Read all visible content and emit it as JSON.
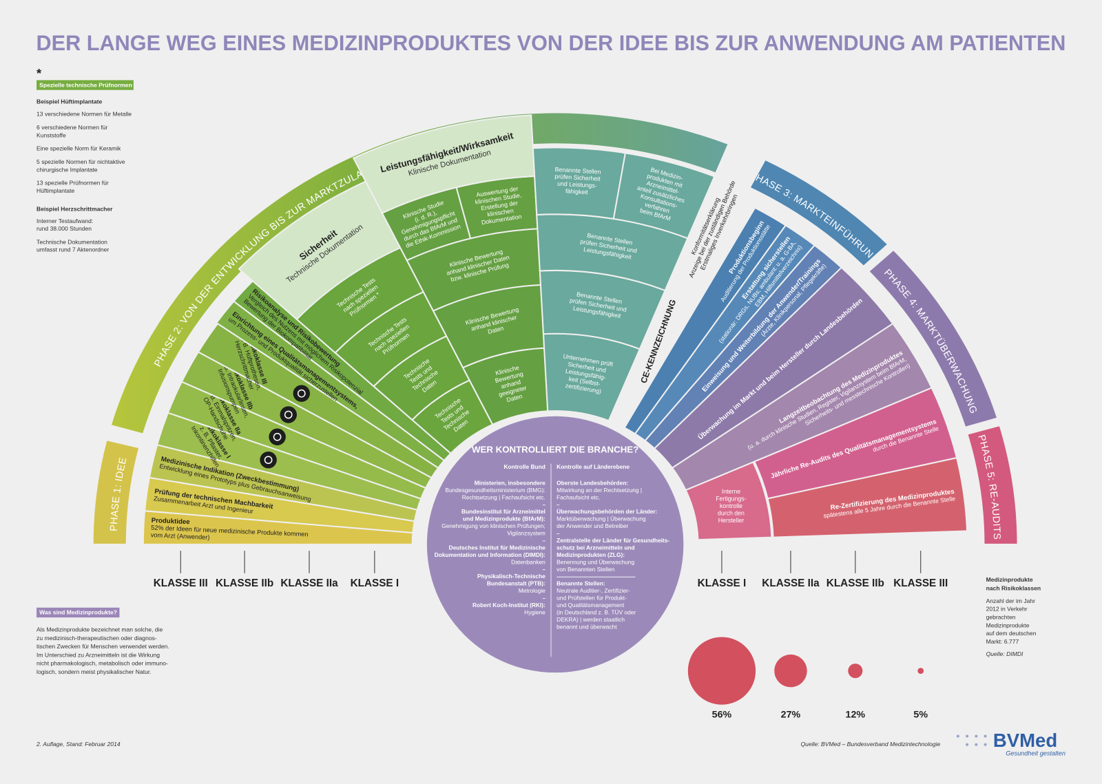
{
  "title": "DER LANGE WEG EINES MEDIZINPRODUKTES VON DER IDEE BIS ZUR ANWENDUNG AM PATIENTEN",
  "norms": {
    "marker": "*",
    "label": "Spezielle technische Prüfnormen",
    "hip_heading": "Beispiel Hüftimplantate",
    "hip_items": [
      [
        "13 verschiedene Normen für Metalle"
      ],
      [
        "6 verschiedene Normen für",
        "Kunststoffe"
      ],
      [
        "Eine spezielle Norm für Keramik"
      ],
      [
        "5 spezielle Normen für nichtaktive",
        "chirurgische Implantate"
      ],
      [
        "13 spezielle Prüfnormen für",
        "Hüftimplantate"
      ]
    ],
    "pacemaker_heading": "Beispiel Herzschrittmacher",
    "pacemaker_items": [
      [
        "Interner Testaufwand:",
        "rund 38.000 Stunden"
      ],
      [
        "Technische Dokumentation",
        "umfasst rund 7 Aktenordner"
      ]
    ]
  },
  "what_are": {
    "label": "Was sind Medizinprodukte?",
    "text": [
      "Als Medizinprodukte bezeichnet man solche, die",
      "zu medizinisch-therapeutischen oder diagnos-",
      "tischen Zwecken für Menschen verwendet werden.",
      "Im Unterschied zu Arzneimitteln ist die Wirkung",
      "nicht pharmakologisch, metabolisch oder immuno-",
      "logisch, sondern meist physikalischer Natur."
    ]
  },
  "phases": [
    "PHASE 1: IDEE",
    "PHASE 2: VON DER ENTWICKLUNG BIS ZUR MARKTZULASSUNG",
    "PHASE 3: MARKTEINFÜHRUNG",
    "PHASE 4: MARKTÜBERWACHUNG",
    "PHASE 5: RE-AUDITS"
  ],
  "idea_bands": [
    {
      "title": "Produktidee",
      "text": [
        "52% der Ideen für neue medizinische Produkte kommen",
        "vom Arzt (Anwender)"
      ]
    },
    {
      "title": "Prüfung der technischen Machbarkeit",
      "text": [
        "Zusammenarbeit Arzt und Ingenieur"
      ]
    },
    {
      "title": "Medizinische Indikation (Zweckbestimmung)",
      "text": [
        "Entwicklung eines Prototyps plus Gebrauchsanweisung"
      ]
    }
  ],
  "risk_classes": [
    {
      "title": "Risikoklasse I",
      "text": [
        "z. B. Pflaster,",
        "Inkontinenzhilfen"
      ]
    },
    {
      "title": "Risikoklasse IIa",
      "text": [
        "z. B. Einmalspritzen,",
        "OP-Handschuhe"
      ]
    },
    {
      "title": "Risikoklasse IIb",
      "text": [
        "z. B. Intraokularlinsen,",
        "Infusionspumpen"
      ]
    },
    {
      "title": "Risikoklasse III",
      "text": [
        "z. B. Hüftprothesen,",
        "Herzschrittmacher"
      ]
    }
  ],
  "dev_bands": [
    {
      "title": "Einrichtung eines Qualitätsmanagementsystems,",
      "text": [
        "um Prozess- und Produktqualität sicherzustellen"
      ]
    },
    {
      "title": "Risikoanalyse und Risikobewertung",
      "text": [
        "Vergleich des Nutzens mit möglichem Risikopotenzial",
        "Bewertung der Biokompatibilität"
      ]
    }
  ],
  "safety": {
    "header": [
      "Sicherheit",
      "Technische Dokumentation"
    ],
    "cells": [
      [
        "Technische",
        "Tests und",
        "Technische",
        "Daten"
      ],
      [
        "Technische",
        "Tests und",
        "Technische",
        "Daten"
      ],
      [
        "Technische Tests",
        "nach speziellen",
        "Prüfnormen"
      ],
      [
        "Technische Tests",
        "nach speziellen",
        "Prüfnormen *"
      ]
    ]
  },
  "performance": {
    "header": [
      "Leistungsfähigkeit/Wirksamkeit",
      "Klinische Dokumentation"
    ],
    "cells": [
      [
        "Klinische",
        "Bewertung",
        "anhand",
        "geeigneter",
        "Daten"
      ],
      [
        "Klinische Bewertung",
        "anhand klinischer",
        "Daten"
      ],
      [
        "Klinische Bewertung",
        "anhand klinischer Daten",
        "bzw. klinische Prüfung"
      ]
    ],
    "top_cells": [
      [
        "Klinische Studie",
        "(i. d. R.),",
        "Genehmigungspflicht",
        "durch das BfArM und",
        "die Ethik-Kommission"
      ],
      [
        "Auswertung der",
        "klinischen Studie,",
        "Erstellung der",
        "klinischen",
        "Dokumentation"
      ]
    ]
  },
  "certification": {
    "cells": [
      [
        "Unternehmen prüft",
        "Sicherheit und",
        "Leistungsfähig-",
        "keit (Selbst-",
        "zertifizierung)"
      ],
      [
        "Benannte Stellen",
        "prüfen Sicherheit und",
        "Leistungsfähigkeit"
      ],
      [
        "Benannte Stellen",
        "prüfen Sicherheit und",
        "Leistungsfähigkeit"
      ]
    ],
    "top_cells": [
      [
        "Benannte Stellen",
        "prüfen Sicherheit",
        "und Leistungs-",
        "fähigkeit"
      ],
      [
        "Bei Medizin-",
        "produkten mit",
        "Arzneimittel-",
        "anteil zusätzliches",
        "Konsultations-",
        "verfahren",
        "beim BfArM"
      ]
    ],
    "ce_label": "CE-KENNZEICHNUNG",
    "conformity": [
      "Konformitätserklärung",
      "Anzeige bei der zuständigen Behörde",
      "Erstmaliges Inverkehrbringen"
    ]
  },
  "market_bands": [
    {
      "title": "Produktionsbeginn",
      "text": [
        "Auditierung der Produktionsstätte"
      ]
    },
    {
      "title": "Erstattung sicherstellen",
      "text": [
        "(stationär: DRGs, NUBs; ambulant: u. a. G-BA,",
        "EBM, Hilfsmittelverzeichnis)"
      ]
    },
    {
      "title": "Einweisung und Weiterbildung der Anwender/Trainings",
      "text": [
        "(Ärzte, Klinikpersonal, Pflegekräfte)"
      ]
    },
    {
      "title": "Überwachung im Markt und beim Hersteller durch Landesbehörden"
    },
    {
      "title": "Langzeitbeobachtung des Medizinproduktes",
      "text": [
        "(u. a. durch klinische Studien, Register, Vigilanzsystem beim BfArM,",
        "Sicherheits- und messtechnische Kontrollen)"
      ]
    },
    {
      "title": "Jährliche Re-Audits des Qualitätsmanagementsystems",
      "text": [
        "durch die Benannte Stelle"
      ]
    },
    {
      "title": "Re-Zertifizierung des Medizinproduktes",
      "text": [
        "spätestens alle 5 Jahre durch die Benannte Stelle"
      ]
    }
  ],
  "internal_control": [
    "Interne",
    "Fertigungs-",
    "kontrolle",
    "durch den",
    "Hersteller"
  ],
  "classes_left": [
    "KLASSE III",
    "KLASSE IIb",
    "KLASSE IIa",
    "KLASSE I"
  ],
  "classes_right": [
    "KLASSE I",
    "KLASSE IIa",
    "KLASSE IIb",
    "KLASSE III"
  ],
  "shares": {
    "values": [
      56,
      27,
      12,
      5
    ],
    "value_labels": [
      "56%",
      "27%",
      "12%",
      "5%"
    ]
  },
  "risk_note": {
    "heading": [
      "Medizinprodukte",
      "nach Risikoklassen"
    ],
    "text": [
      "Anzahl der im Jahr",
      "2012 in Verkehr",
      "gebrachten",
      "Medizinprodukte",
      "auf dem deutschen",
      "Markt: 6.777"
    ],
    "source": "Quelle: DIMDI"
  },
  "control": {
    "title": "WER KONTROLLIERT DIE BRANCHE?",
    "federal_heading": "Kontrolle Bund",
    "federal": [
      {
        "head": [
          "Ministerien, insbesondere"
        ],
        "text": [
          "Bundesgesundheitsministerium (BMG):",
          "Rechtsetzung | Fachaufsicht etc."
        ]
      },
      {
        "head": [
          "Bundesinstitut für Arzneimittel",
          "und Medizinprodukte (BfArM):"
        ],
        "text": [
          "Genehmigung von klinischen Prüfungen;",
          "Vigilanzsystem"
        ]
      },
      {
        "head": [
          "Deutsches Institut für Medizinische",
          "Dokumentation und Information (DIMDI):"
        ],
        "text": [
          "Datenbanken"
        ]
      },
      {
        "head": [
          "Physikalisch-Technische",
          "Bundesanstalt (PTB):"
        ],
        "text": [
          "Metrologie"
        ]
      },
      {
        "head": [
          "Robert Koch-Institut (RKI):"
        ],
        "text": [
          "Hygiene"
        ]
      }
    ],
    "state_heading": "Kontrolle auf Länderebene",
    "state": [
      {
        "head": [
          "Oberste Landesbehörden:"
        ],
        "text": [
          "Mitwirkung an der Rechtsetzung |",
          "Fachaufsicht etc."
        ]
      },
      {
        "head": [
          "Überwachungsbehörden der Länder:"
        ],
        "text": [
          "Marktüberwachung | Überwachung",
          "der Anwender und Betreiber"
        ]
      },
      {
        "head": [
          "Zentralstelle der Länder für Gesundheits-",
          "schutz bei Arzneimitteln und",
          "Medizinprodukten (ZLG):"
        ],
        "text": [
          "Benennung und Überwachung",
          "von Benannten Stellen"
        ]
      },
      {
        "head": [
          "Benannte Stellen:"
        ],
        "text": [
          "Neutrale Auditier-, Zertifizier-",
          "und Prüfstellen für Produkt-",
          "und Qualitätsmanagement",
          "(in Deutschland z. B. TÜV oder",
          "DEKRA) | werden staatlich",
          "benannt und überwacht"
        ]
      }
    ]
  },
  "footer": {
    "edition": "2. Auflage, Stand: Februar 2014",
    "source": "Quelle: BVMed – Bundesverband Medizintechnologie",
    "logo": "BVMed",
    "tagline": "Gesundheit gestalten"
  }
}
